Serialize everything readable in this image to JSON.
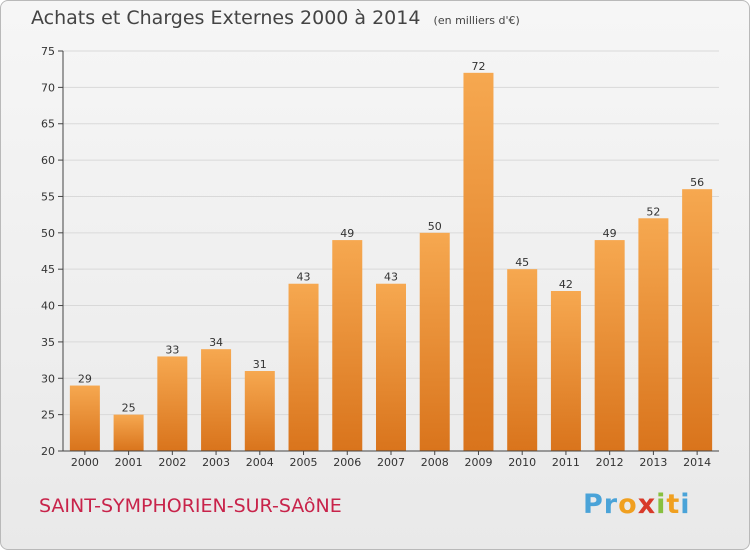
{
  "title": "Achats et Charges Externes 2000 à 2014",
  "subtitle": "(en milliers d'€)",
  "commune": "SAINT-SYMPHORIEN-SUR-SAôNE",
  "logo": {
    "letters": [
      "P",
      "r",
      "o",
      "x",
      "i",
      "t",
      "i"
    ],
    "colors": [
      "#4aa3d8",
      "#4aa3d8",
      "#f0a020",
      "#d83a2a",
      "#88c040",
      "#f0a020",
      "#4aa3d8"
    ]
  },
  "colors": {
    "bar_top": "#f6a850",
    "bar_bottom": "#d9741c",
    "grid": "#d9d9d9",
    "axis": "#444444"
  },
  "chart_data": {
    "type": "bar",
    "title": "Achats et Charges Externes 2000 à 2014",
    "subtitle": "(en milliers d'€)",
    "categories": [
      "2000",
      "2001",
      "2002",
      "2003",
      "2004",
      "2005",
      "2006",
      "2007",
      "2008",
      "2009",
      "2010",
      "2011",
      "2012",
      "2013",
      "2014"
    ],
    "values": [
      29,
      25,
      33,
      34,
      31,
      43,
      49,
      43,
      50,
      72,
      45,
      42,
      49,
      52,
      56
    ],
    "ylim": [
      20,
      75
    ],
    "yticks": [
      20,
      25,
      30,
      35,
      40,
      45,
      50,
      55,
      60,
      65,
      70,
      75
    ],
    "grid": true
  }
}
